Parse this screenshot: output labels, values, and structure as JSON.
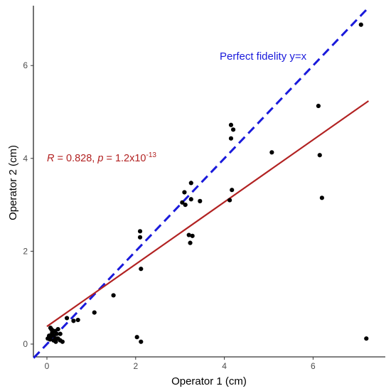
{
  "chart_data": {
    "type": "scatter",
    "xlabel": "Operator 1 (cm)",
    "ylabel": "Operator 2 (cm)",
    "xlim": [
      -0.3,
      7.4
    ],
    "ylim": [
      -0.3,
      7.2
    ],
    "x_ticks": [
      0,
      2,
      4,
      6
    ],
    "y_ticks": [
      0,
      2,
      4,
      6
    ],
    "x_tick_labels": [
      "0",
      "2",
      "4",
      "6"
    ],
    "y_tick_labels": [
      "0",
      "2",
      "4",
      "6"
    ],
    "grid": false,
    "legend": "none",
    "series": [
      {
        "x": [
          0.02,
          0.05,
          0.07,
          0.08,
          0.1,
          0.12,
          0.13,
          0.15,
          0.18,
          0.2,
          0.22,
          0.25,
          0.3,
          0.35,
          0.05,
          0.1,
          0.15,
          0.2,
          0.25,
          0.08,
          0.12,
          0.3,
          0.45,
          0.6,
          0.7,
          1.07,
          1.5,
          2.03,
          2.1,
          2.1,
          2.12,
          2.12,
          3.05,
          3.1,
          3.12,
          3.2,
          3.23,
          3.25,
          3.25,
          3.28,
          3.45,
          4.12,
          4.15,
          4.15,
          4.17,
          4.2,
          5.07,
          6.12,
          6.15,
          6.2,
          7.08,
          7.2
        ],
        "y": [
          0.12,
          0.15,
          0.1,
          0.35,
          0.2,
          0.3,
          0.25,
          0.18,
          0.28,
          0.05,
          0.22,
          0.12,
          0.08,
          0.05,
          0.18,
          0.32,
          0.08,
          0.12,
          0.32,
          0.15,
          0.25,
          0.22,
          0.56,
          0.5,
          0.52,
          0.68,
          1.05,
          0.15,
          2.43,
          2.3,
          1.62,
          0.05,
          3.05,
          3.27,
          3.0,
          2.35,
          2.18,
          3.47,
          3.12,
          2.33,
          3.08,
          3.1,
          4.43,
          4.72,
          3.32,
          4.62,
          4.13,
          5.13,
          4.07,
          3.15,
          6.88,
          0.12
        ]
      }
    ],
    "lines": [
      {
        "name": "y=x",
        "slope": 1,
        "intercept": 0,
        "style": "dashed",
        "color": "#1a1adb"
      },
      {
        "name": "fit",
        "slope": 0.67,
        "intercept": 0.38,
        "style": "solid",
        "color": "#b22222",
        "x_range": [
          0,
          7.25
        ]
      }
    ],
    "annotations": {
      "fidelity": "Perfect fidelity y=x",
      "r_label": "R",
      "r_text": " = 0.828, ",
      "p_label": "p",
      "p_text": " = 1.2x10",
      "p_exponent": "-13"
    },
    "colors": {
      "points": "#000000",
      "identity_line": "#1a1adb",
      "fit_line": "#b22222",
      "fidelity_text": "#1a1adb",
      "stats_text": "#b22222"
    }
  }
}
